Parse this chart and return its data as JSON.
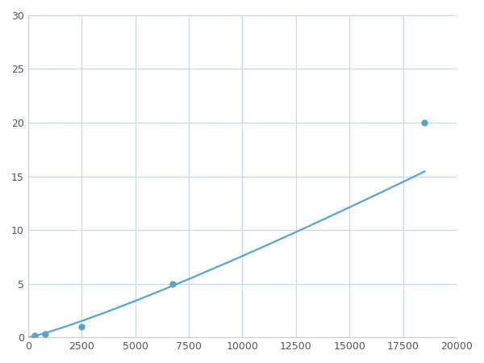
{
  "x": [
    300,
    800,
    2500,
    6750,
    18500
  ],
  "y": [
    0.2,
    0.3,
    1.0,
    5.0,
    20.0
  ],
  "line_color": "#5ba3c9",
  "marker_color": "#5ba3c9",
  "marker_size": 5,
  "line_width": 1.6,
  "xlim": [
    0,
    20000
  ],
  "ylim": [
    0,
    30
  ],
  "xticks": [
    0,
    2500,
    5000,
    7500,
    10000,
    12500,
    15000,
    17500,
    20000
  ],
  "yticks": [
    0,
    5,
    10,
    15,
    20,
    25,
    30
  ],
  "grid_color": "#c8d4e8",
  "background_color": "#ffffff",
  "figure_bg": "#ffffff"
}
